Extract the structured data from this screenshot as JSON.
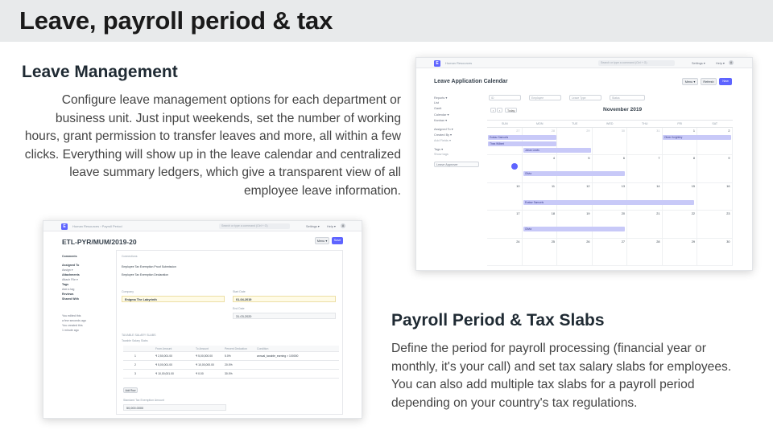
{
  "slide": {
    "title": "Leave, payroll period & tax"
  },
  "leave": {
    "heading": "Leave Management",
    "description": "Configure leave management options for each department or business unit. Just input weekends, set the number of working hours, grant permission to transfer leaves and more, all within a few clicks. Everything will show up in the leave calendar and centralized leave summary ledgers, which give a transparent view of all employee leave information."
  },
  "payroll": {
    "heading": "Payroll Period & Tax Slabs",
    "description": "Define the period for payroll processing (financial year or monthly, it's your call) and set tax salary slabs for employees. You can also add multiple tax slabs for a payroll period depending on your country's tax regulations."
  },
  "calendar_screen": {
    "logo": "E",
    "breadcrumb": "Human Resources",
    "search_placeholder": "Search or type a command (Ctrl + G)",
    "settings": "Settings ▾",
    "help": "Help ▾",
    "avatar": "A",
    "page_title": "Leave Application Calendar",
    "menu_button": "Menu ▾",
    "refresh_button": "Refresh",
    "new_button": "New",
    "sidebar": [
      "Reports ▾",
      "List",
      "Gantt",
      "Calendar ▾",
      "Kanban ▾",
      "",
      "Assigned To ▾",
      "Created By ▾",
      "Add Fields ▾",
      "",
      "Tags ▾",
      "Show tags",
      "",
      "Leave Approver"
    ],
    "filters": [
      "ID",
      "Employee",
      "Leave Type",
      "Status"
    ],
    "nav": {
      "prev": "‹",
      "next": "›",
      "today": "Today"
    },
    "month": "November 2019",
    "days_of_week": [
      "SUN",
      "MON",
      "TUE",
      "WED",
      "THU",
      "FRI",
      "SAT"
    ],
    "weeks": [
      [
        "27",
        "28",
        "29",
        "30",
        "31",
        "1",
        "2"
      ],
      [
        "3",
        "4",
        "5",
        "6",
        "7",
        "8",
        "9"
      ],
      [
        "10",
        "11",
        "12",
        "13",
        "14",
        "15",
        "16"
      ],
      [
        "17",
        "18",
        "19",
        "20",
        "21",
        "22",
        "23"
      ],
      [
        "24",
        "25",
        "26",
        "27",
        "28",
        "29",
        "30"
      ]
    ],
    "events": [
      "Eustaz Samuels",
      "Thea Wilbert",
      "Johan Lewis",
      "Oliver Knightley",
      "Olivia",
      "Eustaz Samuels",
      "Olivia"
    ]
  },
  "payroll_screen": {
    "logo": "E",
    "breadcrumb": "Human Resources  ›  Payroll Period",
    "search_placeholder": "Search or type a command (Ctrl + G)",
    "settings": "Settings ▾",
    "help": "Help ▾",
    "avatar": "A",
    "doc_title": "ETL-PYR/MUM/2019-20",
    "menu_button": "Menu ▾",
    "save_button": "Save",
    "sidebar": [
      "Comments",
      "Assigned To",
      "Assign ▾",
      "Attachments",
      "Attach File ▾",
      "Tags",
      "Add a tag",
      "Reviews",
      "Shared With",
      "",
      "You edited this",
      "a few seconds ago",
      "You created this",
      "1 minute ago"
    ],
    "connections_label": "Connections",
    "links": [
      "Employee Tax Exemption Proof Submission",
      "Employee Tax Exemption Declaration"
    ],
    "company_label": "Company",
    "company_value": "Enigma The Labyrinth",
    "start_date_label": "Start Date",
    "start_date_value": "01-04-2019",
    "end_date_label": "End Date",
    "end_date_value": "31-03-2020",
    "taxable_section": "TAXABLE SALARY SLABS",
    "table_label": "Taxable Salary Slabs",
    "table_headers": [
      "",
      "From Amount",
      "To Amount",
      "Percent Deduction",
      "Condition"
    ],
    "rows": [
      [
        "1",
        "₹ 2,50,001.00",
        "₹ 5,00,000.00",
        "5.0%",
        "annual_taxable_earning > 100000"
      ],
      [
        "2",
        "₹ 5,00,001.00",
        "₹ 10,00,000.00",
        "20.0%",
        ""
      ],
      [
        "3",
        "₹ 10,00,001.00",
        "₹ 0.00",
        "30.0%",
        ""
      ]
    ],
    "add_row": "Add Row",
    "exemption_label": "Standard Tax Exemption Amount",
    "exemption_value": "50,000.0000"
  }
}
